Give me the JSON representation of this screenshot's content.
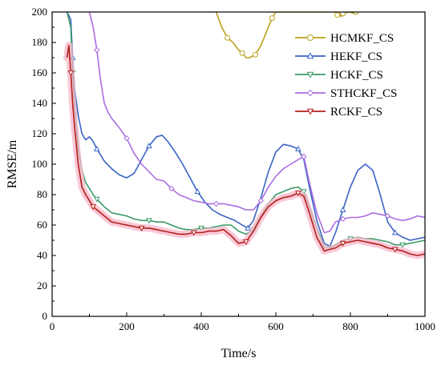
{
  "chart_data": {
    "type": "line",
    "title": "",
    "xlabel": "Time/s",
    "ylabel": "RMSE/m",
    "xlim": [
      0,
      1000
    ],
    "ylim": [
      0,
      200
    ],
    "x_ticks": [
      0,
      200,
      400,
      600,
      800,
      1000
    ],
    "y_ticks": [
      0,
      20,
      40,
      60,
      80,
      100,
      120,
      140,
      160,
      180,
      200
    ],
    "grid": false,
    "legend_position": "top-right",
    "series": [
      {
        "name": "HCMKF_CS",
        "color": "#b8a11a",
        "marker": "circle",
        "x": [
          440,
          455,
          470,
          485,
          500,
          510,
          520,
          530,
          545,
          560,
          575,
          590,
          600,
          760,
          765,
          770,
          775,
          780,
          795,
          810,
          815
        ],
        "y": [
          200,
          190,
          183,
          180,
          175,
          173,
          170,
          170,
          172,
          178,
          187,
          196,
          200,
          200,
          198,
          199,
          197,
          199,
          200,
          199,
          200
        ]
      },
      {
        "name": "HEKF_CS",
        "color": "#3a63c4",
        "marker": "triangle",
        "x": [
          40,
          50,
          55,
          60,
          70,
          80,
          90,
          100,
          110,
          120,
          140,
          160,
          180,
          200,
          220,
          240,
          260,
          280,
          295,
          310,
          330,
          350,
          370,
          390,
          410,
          430,
          450,
          470,
          490,
          510,
          525,
          540,
          560,
          580,
          600,
          620,
          640,
          660,
          675,
          690,
          710,
          730,
          745,
          760,
          780,
          800,
          820,
          840,
          860,
          880,
          900,
          920,
          940,
          960,
          980,
          1000
        ],
        "y": [
          200,
          195,
          170,
          150,
          132,
          120,
          116,
          118,
          115,
          110,
          102,
          97,
          93,
          91,
          94,
          103,
          112,
          118,
          119,
          115,
          108,
          100,
          91,
          82,
          75,
          70,
          67,
          65,
          63,
          60,
          58,
          63,
          78,
          95,
          108,
          113,
          112,
          110,
          103,
          85,
          63,
          48,
          46,
          55,
          70,
          85,
          96,
          100,
          96,
          80,
          62,
          55,
          52,
          50,
          51,
          52
        ]
      },
      {
        "name": "HCKF_CS",
        "color": "#3a9a6b",
        "marker": "inverted-triangle",
        "x": [
          40,
          50,
          55,
          60,
          70,
          80,
          90,
          100,
          110,
          120,
          140,
          160,
          180,
          200,
          220,
          240,
          260,
          280,
          300,
          320,
          340,
          360,
          380,
          400,
          420,
          440,
          460,
          480,
          500,
          520,
          540,
          560,
          580,
          600,
          620,
          640,
          660,
          675,
          690,
          710,
          730,
          745,
          760,
          780,
          800,
          820,
          840,
          860,
          880,
          900,
          920,
          940,
          960,
          980,
          1000
        ],
        "y": [
          200,
          190,
          160,
          140,
          110,
          96,
          88,
          84,
          80,
          77,
          72,
          68,
          67,
          66,
          64,
          63,
          63,
          62,
          62,
          60,
          58,
          57,
          57,
          58,
          58,
          59,
          60,
          60,
          56,
          54,
          57,
          66,
          74,
          80,
          82,
          84,
          85,
          82,
          72,
          58,
          46,
          45,
          47,
          50,
          51,
          52,
          51,
          51,
          50,
          49,
          47,
          47,
          48,
          49,
          50
        ]
      },
      {
        "name": "STHCKF_CS",
        "color": "#a96de0",
        "marker": "diamond",
        "x": [
          100,
          110,
          120,
          130,
          140,
          150,
          160,
          180,
          200,
          220,
          240,
          260,
          280,
          300,
          320,
          340,
          360,
          380,
          400,
          420,
          440,
          460,
          480,
          500,
          520,
          540,
          560,
          580,
          600,
          620,
          640,
          660,
          675,
          690,
          710,
          730,
          745,
          760,
          780,
          800,
          820,
          840,
          860,
          880,
          900,
          920,
          940,
          960,
          980,
          1000
        ],
        "y": [
          200,
          190,
          175,
          155,
          140,
          134,
          130,
          124,
          117,
          107,
          100,
          95,
          90,
          89,
          84,
          80,
          78,
          76,
          75,
          74,
          74,
          74,
          73,
          72,
          70,
          70,
          76,
          85,
          92,
          97,
          100,
          103,
          105,
          88,
          68,
          55,
          56,
          62,
          64,
          65,
          65,
          66,
          68,
          67,
          66,
          64,
          63,
          64,
          66,
          65
        ]
      },
      {
        "name": "RCKF_CS",
        "color": "#b3201c",
        "marker": "down-triangle",
        "x": [
          40,
          45,
          50,
          55,
          60,
          70,
          80,
          90,
          100,
          110,
          120,
          140,
          160,
          180,
          200,
          220,
          240,
          260,
          280,
          300,
          320,
          340,
          360,
          380,
          400,
          420,
          440,
          460,
          480,
          500,
          520,
          540,
          560,
          580,
          600,
          620,
          640,
          660,
          675,
          690,
          710,
          730,
          745,
          760,
          780,
          800,
          820,
          840,
          860,
          880,
          900,
          920,
          940,
          960,
          980,
          1000
        ],
        "y": [
          170,
          178,
          160,
          140,
          125,
          100,
          85,
          80,
          76,
          72,
          70,
          66,
          62,
          61,
          60,
          59,
          58,
          58,
          57,
          56,
          55,
          54,
          54,
          55,
          55,
          56,
          56,
          57,
          53,
          48,
          49,
          56,
          65,
          72,
          76,
          78,
          79,
          81,
          79,
          68,
          52,
          43,
          44,
          45,
          48,
          49,
          50,
          49,
          48,
          47,
          45,
          44,
          43,
          41,
          40,
          41
        ]
      }
    ]
  }
}
